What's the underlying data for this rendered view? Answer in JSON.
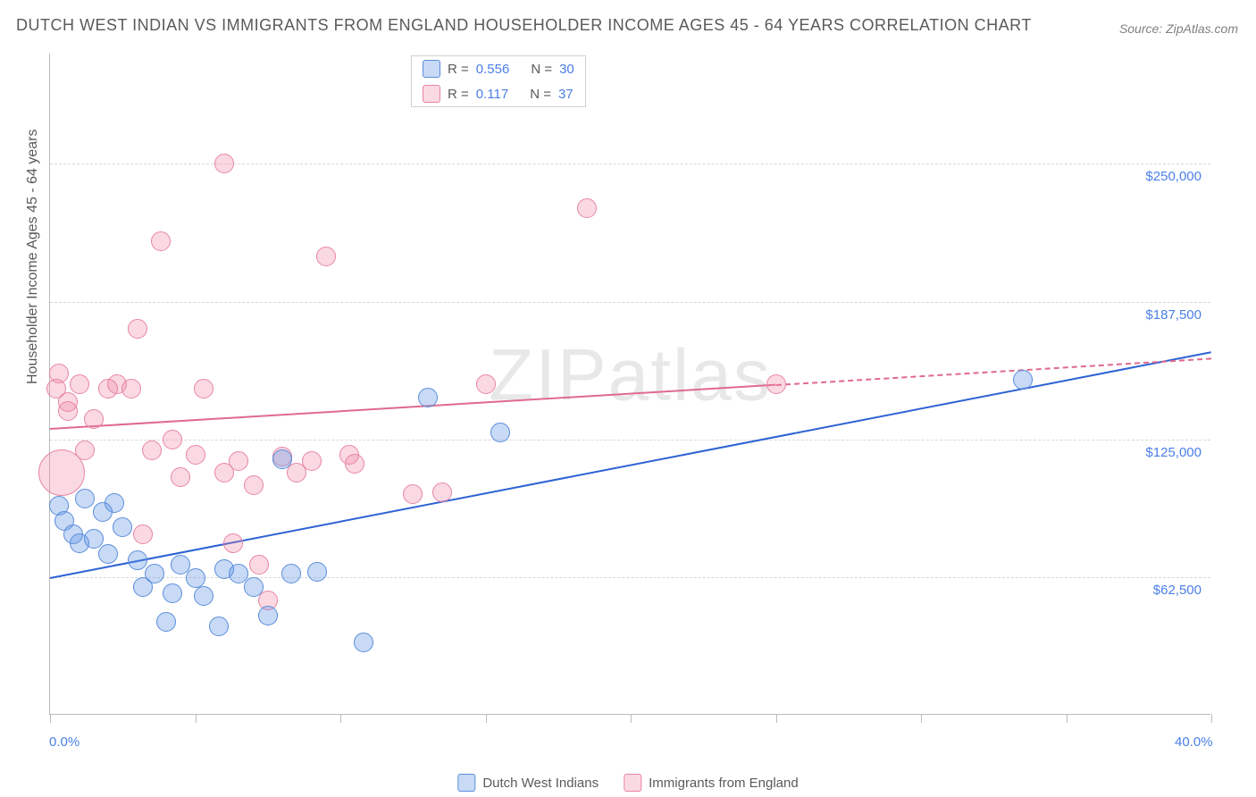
{
  "title": "DUTCH WEST INDIAN VS IMMIGRANTS FROM ENGLAND HOUSEHOLDER INCOME AGES 45 - 64 YEARS CORRELATION CHART",
  "source": "Source: ZipAtlas.com",
  "watermark": "ZIPatlas",
  "y_axis_title": "Householder Income Ages 45 - 64 years",
  "xlim": [
    0,
    40
  ],
  "ylim": [
    0,
    300000
  ],
  "x_ticks": [
    0,
    5,
    10,
    15,
    20,
    25,
    30,
    35,
    40
  ],
  "x_tick_labels_shown": {
    "0": "0.0%",
    "40": "40.0%"
  },
  "y_gridlines": [
    62500,
    125000,
    187500,
    250000
  ],
  "y_labels": [
    "$62,500",
    "$125,000",
    "$187,500",
    "$250,000"
  ],
  "colors": {
    "blue_fill": "rgba(96,150,230,0.35)",
    "blue_stroke": "#5a8ddb",
    "pink_fill": "rgba(240,130,160,0.30)",
    "pink_stroke": "#e885a3",
    "blue_line": "#2d62d4",
    "pink_line": "#e06a8e",
    "label_color": "#4a7fe8",
    "grid_color": "#d8d8d8",
    "text_gray": "#5a5a5a"
  },
  "point_radius_default": 11,
  "series": {
    "blue": {
      "label": "Dutch West Indians",
      "points": [
        [
          0.3,
          95000
        ],
        [
          0.5,
          88000
        ],
        [
          0.8,
          82000
        ],
        [
          1.0,
          78000
        ],
        [
          1.2,
          98000
        ],
        [
          1.5,
          80000
        ],
        [
          1.8,
          92000
        ],
        [
          2.0,
          73000
        ],
        [
          2.2,
          96000
        ],
        [
          2.5,
          85000
        ],
        [
          3.0,
          70000
        ],
        [
          3.2,
          58000
        ],
        [
          3.6,
          64000
        ],
        [
          4.0,
          42000
        ],
        [
          4.2,
          55000
        ],
        [
          4.5,
          68000
        ],
        [
          5.0,
          62000
        ],
        [
          5.3,
          54000
        ],
        [
          5.8,
          40000
        ],
        [
          6.0,
          66000
        ],
        [
          6.5,
          64000
        ],
        [
          7.0,
          58000
        ],
        [
          7.5,
          45000
        ],
        [
          8.0,
          116000
        ],
        [
          8.3,
          64000
        ],
        [
          9.2,
          65000
        ],
        [
          10.8,
          33000
        ],
        [
          13.0,
          144000
        ],
        [
          15.5,
          128000
        ],
        [
          33.5,
          152000
        ]
      ],
      "trend": {
        "x1": 0,
        "y1": 62500,
        "x2": 40,
        "y2": 165000
      }
    },
    "pink": {
      "label": "Immigrants from England",
      "points": [
        [
          0.2,
          148000,
          11
        ],
        [
          0.3,
          155000,
          11
        ],
        [
          0.4,
          110000,
          26
        ],
        [
          0.6,
          142000,
          11
        ],
        [
          0.6,
          138000,
          11
        ],
        [
          1.0,
          150000,
          11
        ],
        [
          1.2,
          120000,
          11
        ],
        [
          1.5,
          134000,
          11
        ],
        [
          2.0,
          148000,
          11
        ],
        [
          2.3,
          150000,
          11
        ],
        [
          2.8,
          148000,
          11
        ],
        [
          3.0,
          175000,
          11
        ],
        [
          3.2,
          82000,
          11
        ],
        [
          3.5,
          120000,
          11
        ],
        [
          3.8,
          215000,
          11
        ],
        [
          4.2,
          125000,
          11
        ],
        [
          4.5,
          108000,
          11
        ],
        [
          5.0,
          118000,
          11
        ],
        [
          5.3,
          148000,
          11
        ],
        [
          6.0,
          250000,
          11
        ],
        [
          6.0,
          110000,
          11
        ],
        [
          6.3,
          78000,
          11
        ],
        [
          6.5,
          115000,
          11
        ],
        [
          7.0,
          104000,
          11
        ],
        [
          7.2,
          68000,
          11
        ],
        [
          7.5,
          52000,
          11
        ],
        [
          8.0,
          117000,
          11
        ],
        [
          8.5,
          110000,
          11
        ],
        [
          9.0,
          115000,
          11
        ],
        [
          9.5,
          208000,
          11
        ],
        [
          10.3,
          118000,
          11
        ],
        [
          10.5,
          114000,
          11
        ],
        [
          12.5,
          100000,
          11
        ],
        [
          13.5,
          101000,
          11
        ],
        [
          15.0,
          150000,
          11
        ],
        [
          18.5,
          230000,
          11
        ],
        [
          25.0,
          150000,
          11
        ]
      ],
      "trend_solid": {
        "x1": 0,
        "y1": 130000,
        "x2": 25,
        "y2": 150000
      },
      "trend_dash": {
        "x1": 25,
        "y1": 150000,
        "x2": 40,
        "y2": 162000
      }
    }
  },
  "legend_top": {
    "rows": [
      {
        "swatch": "blue",
        "r_label": "R =",
        "r_value": "0.556",
        "n_label": "N =",
        "n_value": "30"
      },
      {
        "swatch": "pink",
        "r_label": "R =",
        "r_value": "0.117",
        "n_label": "N =",
        "n_value": "37"
      }
    ]
  },
  "legend_bottom": [
    {
      "swatch": "blue",
      "label": "Dutch West Indians"
    },
    {
      "swatch": "pink",
      "label": "Immigrants from England"
    }
  ]
}
